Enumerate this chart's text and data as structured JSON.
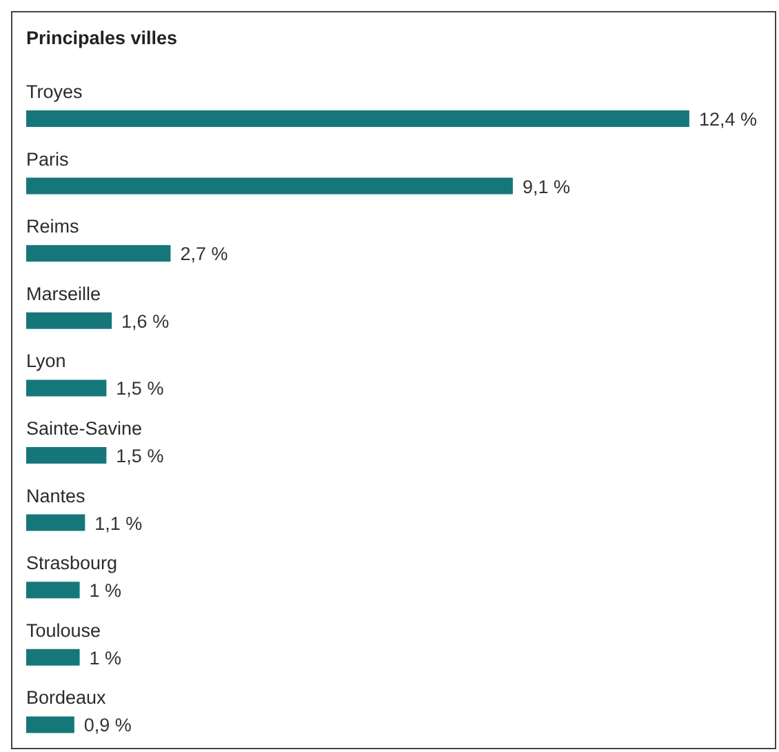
{
  "chart_data": {
    "type": "bar",
    "orientation": "horizontal",
    "title": "Principales villes",
    "categories": [
      "Troyes",
      "Paris",
      "Reims",
      "Marseille",
      "Lyon",
      "Sainte-Savine",
      "Nantes",
      "Strasbourg",
      "Toulouse",
      "Bordeaux"
    ],
    "values": [
      12.4,
      9.1,
      2.7,
      1.6,
      1.5,
      1.5,
      1.1,
      1,
      1,
      0.9
    ],
    "value_labels": [
      "12,4 %",
      "9,1 %",
      "2,7 %",
      "1,6 %",
      "1,5 %",
      "1,5 %",
      "1,1 %",
      "1 %",
      "1 %",
      "0,9 %"
    ],
    "color": "#16777a",
    "xlim": [
      0,
      14
    ],
    "tick_labels": "y",
    "grid": false,
    "legend": false
  }
}
